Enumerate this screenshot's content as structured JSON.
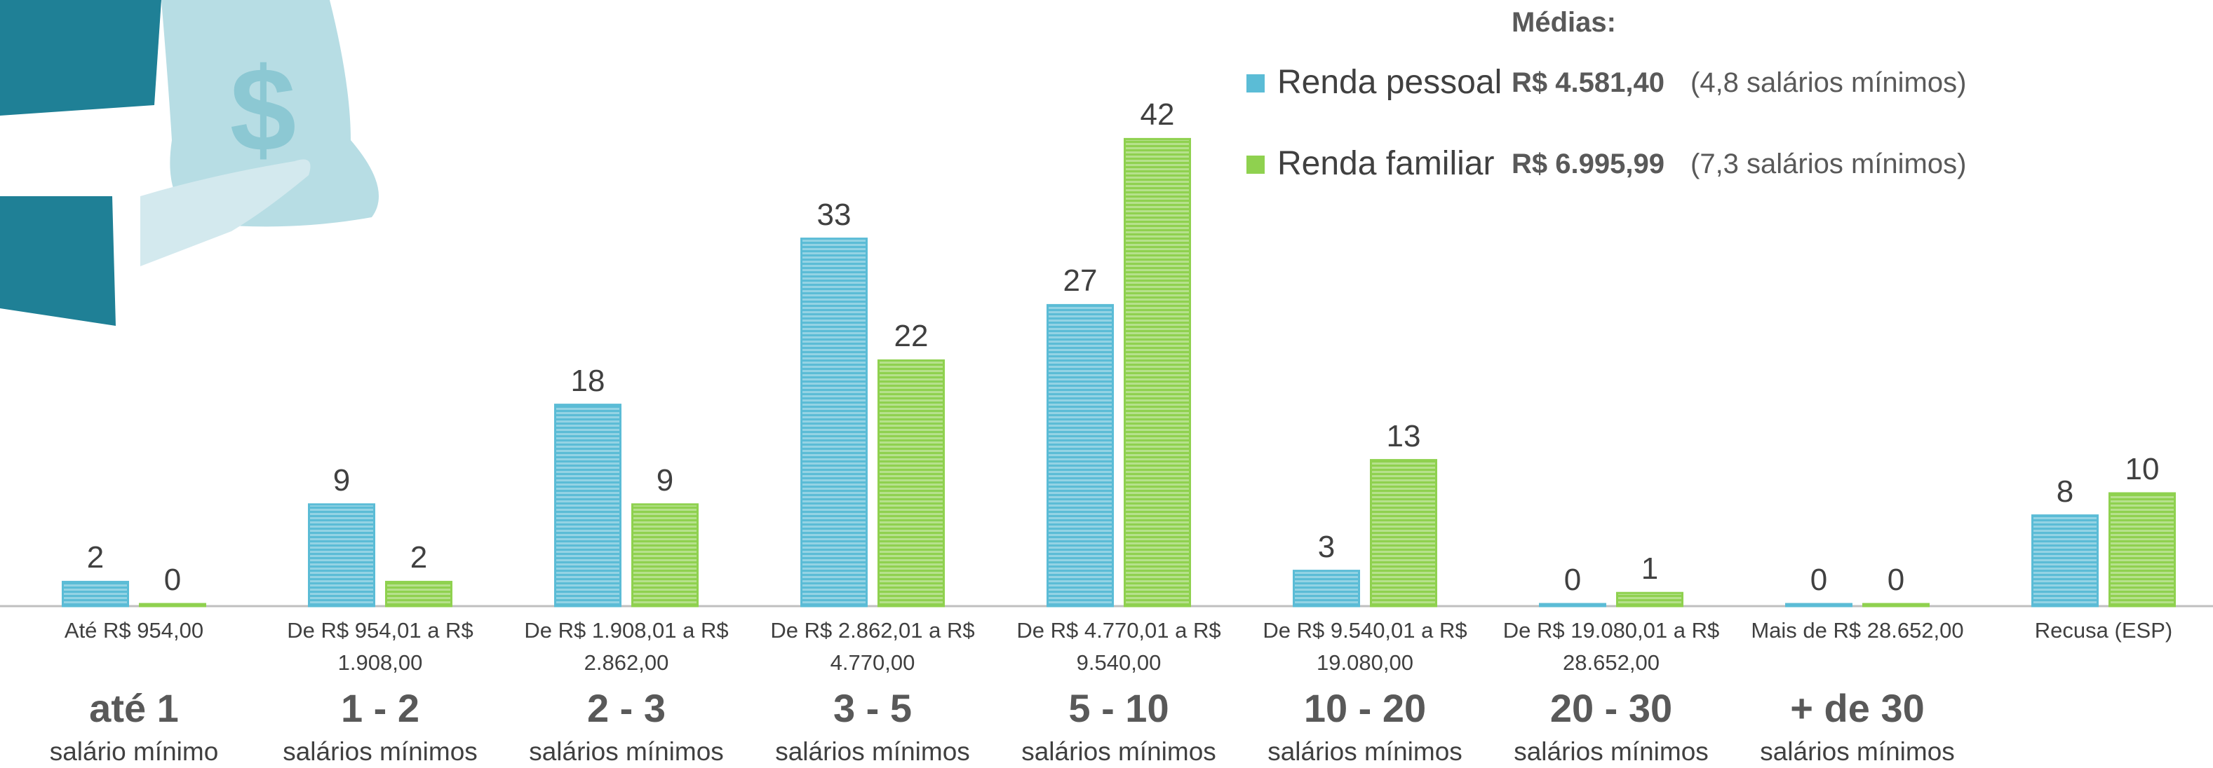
{
  "chart_data": {
    "type": "bar",
    "averages_title": "Médias:",
    "categories": [
      "Até R$ 954,00",
      "De R$ 954,01 a R$ 1.908,00",
      "De R$ 1.908,01 a R$ 2.862,00",
      "De R$ 2.862,01 a R$ 4.770,00",
      "De R$ 4.770,01 a R$ 9.540,00",
      "De R$ 9.540,01 a R$ 19.080,00",
      "De R$ 19.080,01 a R$ 28.652,00",
      "Mais de R$ 28.652,00",
      "Recusa (ESP)"
    ],
    "group_labels": [
      "até 1",
      "1 - 2",
      "2 - 3",
      "3 - 5",
      "5 - 10",
      "10 - 20",
      "20 - 30",
      "+ de 30",
      null
    ],
    "group_sublabels": [
      "salário mínimo",
      "salários mínimos",
      "salários mínimos",
      "salários mínimos",
      "salários mínimos",
      "salários mínimos",
      "salários mínimos",
      "salários mínimos",
      null
    ],
    "series": [
      {
        "name": "Renda pessoal",
        "color": "#5bbcd6",
        "average": "R$ 4.581,40",
        "average_note": "(4,8 salários mínimos)",
        "values": [
          2,
          9,
          18,
          33,
          27,
          3,
          0,
          0,
          8
        ]
      },
      {
        "name": "Renda familiar",
        "color": "#8fd14f",
        "average": "R$ 6.995,99",
        "average_note": "(7,3 salários mínimos)",
        "values": [
          0,
          2,
          9,
          22,
          42,
          13,
          1,
          0,
          10
        ]
      }
    ]
  }
}
